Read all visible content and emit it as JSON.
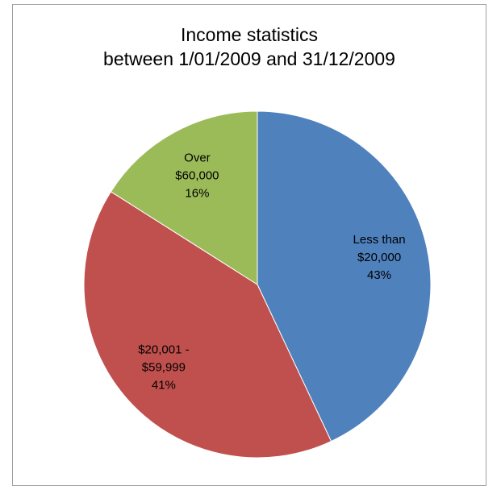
{
  "chart_data": {
    "type": "pie",
    "title": "Income statistics",
    "subtitle": "between 1/01/2009 and 31/12/2009",
    "legend": "none",
    "slices": [
      {
        "label": "Less than $20,000",
        "label_lines": [
          "Less than",
          "$20,000"
        ],
        "value": 43,
        "percent_label": "43%",
        "color": "#4f81bd"
      },
      {
        "label": "$20,001 - $59,999",
        "label_lines": [
          "$20,001 -",
          "$59,999"
        ],
        "value": 41,
        "percent_label": "41%",
        "color": "#c0504d"
      },
      {
        "label": "Over $60,000",
        "label_lines": [
          "Over",
          "$60,000"
        ],
        "value": 16,
        "percent_label": "16%",
        "color": "#9bbb59"
      }
    ]
  }
}
